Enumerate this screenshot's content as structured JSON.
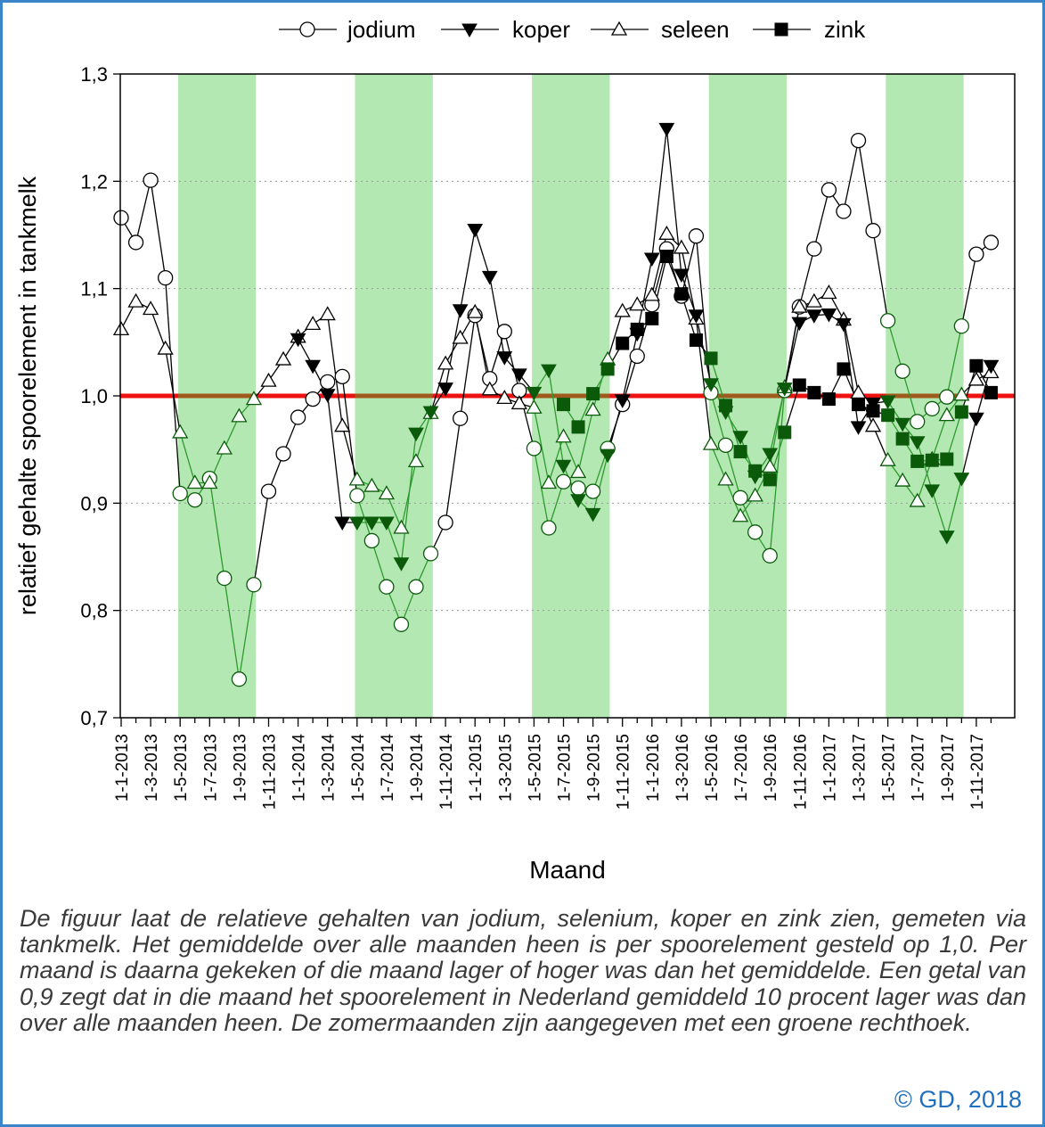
{
  "chart_data": {
    "type": "line",
    "ylabel": "relatief gehalte spoorelement in tankmelk",
    "xlabel": "Maand",
    "ylim": [
      0.7,
      1.3
    ],
    "yticks": [
      "0,7",
      "0,8",
      "0,9",
      "1,0",
      "1,1",
      "1,2",
      "1,3"
    ],
    "grid": "horizontal dotted",
    "start_month": "2013-01",
    "num_months": 60,
    "xtick_labels": [
      "1-1-2013",
      "1-3-2013",
      "1-5-2013",
      "1-7-2013",
      "1-9-2013",
      "1-11-2013",
      "1-1-2014",
      "1-3-2014",
      "1-5-2014",
      "1-7-2014",
      "1-9-2014",
      "1-11-2014",
      "1-1-2015",
      "1-3-2015",
      "1-5-2015",
      "1-7-2015",
      "1-9-2015",
      "1-11-2015",
      "1-1-2016",
      "1-3-2016",
      "1-5-2016",
      "1-7-2016",
      "1-9-2016",
      "1-11-2016",
      "1-1-2017",
      "1-3-2017",
      "1-5-2017",
      "1-7-2017",
      "1-9-2017",
      "1-11-2017"
    ],
    "summer_periods": [
      [
        4,
        9
      ],
      [
        16,
        21
      ],
      [
        28,
        33
      ],
      [
        40,
        45
      ],
      [
        52,
        57
      ]
    ],
    "reference_line": 1.0,
    "legend_position": "top",
    "series": [
      {
        "name": "jodium",
        "marker": "circle-open",
        "values": [
          1.166,
          1.143,
          1.201,
          1.11,
          0.909,
          0.903,
          0.923,
          0.83,
          0.736,
          0.824,
          0.911,
          0.946,
          0.98,
          0.997,
          1.013,
          1.018,
          0.907,
          0.865,
          0.822,
          0.787,
          0.822,
          0.853,
          0.882,
          0.979,
          1.075,
          1.016,
          1.06,
          1.005,
          0.951,
          0.877,
          0.92,
          0.914,
          0.911,
          0.951,
          0.992,
          1.037,
          1.085,
          1.137,
          1.093,
          1.149,
          1.003,
          0.954,
          0.905,
          0.873,
          0.851,
          1.005,
          1.083,
          1.137,
          1.192,
          1.172,
          1.238,
          1.154,
          1.07,
          1.023,
          0.976,
          0.988,
          0.999,
          1.065,
          1.132,
          1.143
        ]
      },
      {
        "name": "koper",
        "marker": "triangle-down-filled",
        "values": [
          null,
          null,
          null,
          null,
          null,
          null,
          null,
          null,
          null,
          null,
          null,
          null,
          1.053,
          1.028,
          1.001,
          0.882,
          0.882,
          0.882,
          0.882,
          0.844,
          0.965,
          0.985,
          1.007,
          1.08,
          1.155,
          1.111,
          1.036,
          1.02,
          1.003,
          1.024,
          0.935,
          0.903,
          0.89,
          0.945,
          0.996,
          1.058,
          1.128,
          1.249,
          1.113,
          1.075,
          1.011,
          0.985,
          0.962,
          0.925,
          0.946,
          1.007,
          1.068,
          1.075,
          1.076,
          1.067,
          0.971,
          0.993,
          0.995,
          0.974,
          0.957,
          0.912,
          0.869,
          0.923,
          0.979,
          1.028
        ]
      },
      {
        "name": "seleen",
        "marker": "triangle-up-open",
        "values": [
          1.062,
          1.088,
          1.081,
          1.044,
          0.966,
          0.919,
          0.919,
          0.951,
          0.981,
          0.997,
          1.014,
          1.034,
          1.055,
          1.067,
          1.076,
          0.972,
          0.922,
          0.916,
          0.909,
          0.877,
          0.939,
          0.984,
          1.03,
          1.054,
          1.078,
          1.006,
          0.998,
          0.993,
          0.989,
          0.919,
          0.962,
          0.929,
          0.987,
          1.034,
          1.079,
          1.085,
          1.094,
          1.151,
          1.138,
          1.072,
          0.955,
          0.922,
          0.888,
          0.907,
          0.934,
          1.008,
          1.083,
          1.088,
          1.096,
          1.071,
          1.003,
          0.972,
          0.94,
          0.921,
          0.902,
          0.941,
          0.982,
          1.001,
          1.015,
          1.022
        ]
      },
      {
        "name": "zink",
        "marker": "square-filled",
        "values": [
          null,
          null,
          null,
          null,
          null,
          null,
          null,
          null,
          null,
          null,
          null,
          null,
          null,
          null,
          null,
          null,
          null,
          null,
          null,
          null,
          null,
          null,
          null,
          null,
          null,
          null,
          null,
          null,
          null,
          null,
          0.992,
          0.971,
          1.002,
          1.025,
          1.049,
          1.062,
          1.072,
          1.13,
          1.095,
          1.052,
          1.035,
          0.991,
          0.948,
          0.93,
          0.922,
          0.966,
          1.01,
          1.003,
          0.997,
          1.025,
          0.992,
          0.986,
          0.982,
          0.96,
          0.939,
          0.94,
          0.941,
          0.985,
          1.028,
          1.003
        ]
      }
    ]
  },
  "caption": "De figuur laat de relatieve gehalten van jodium, selenium, koper en zink zien, gemeten via tankmelk. Het gemiddelde over alle maanden heen is per spoorelement gesteld op 1,0. Per maand is daarna gekeken of die maand lager of hoger was dan het gemiddelde. Een getal van 0,9 zegt dat in die maand het spoorelement in Nederland gemiddeld 10 procent lager was dan over alle maanden heen. De zomermaanden zijn aangegeven met een groene rechthoek.",
  "copyright": "© GD, 2018",
  "colors": {
    "summer_band": "#b3e8b3",
    "reference_line": "#ee1111",
    "reference_line_summer": "#a05a1e",
    "dark_green": "#0a5a0a",
    "green_line": "#2e9a2e",
    "axis": "#000000",
    "frame": "#3a86c8",
    "copyright": "#1f6fc0"
  }
}
